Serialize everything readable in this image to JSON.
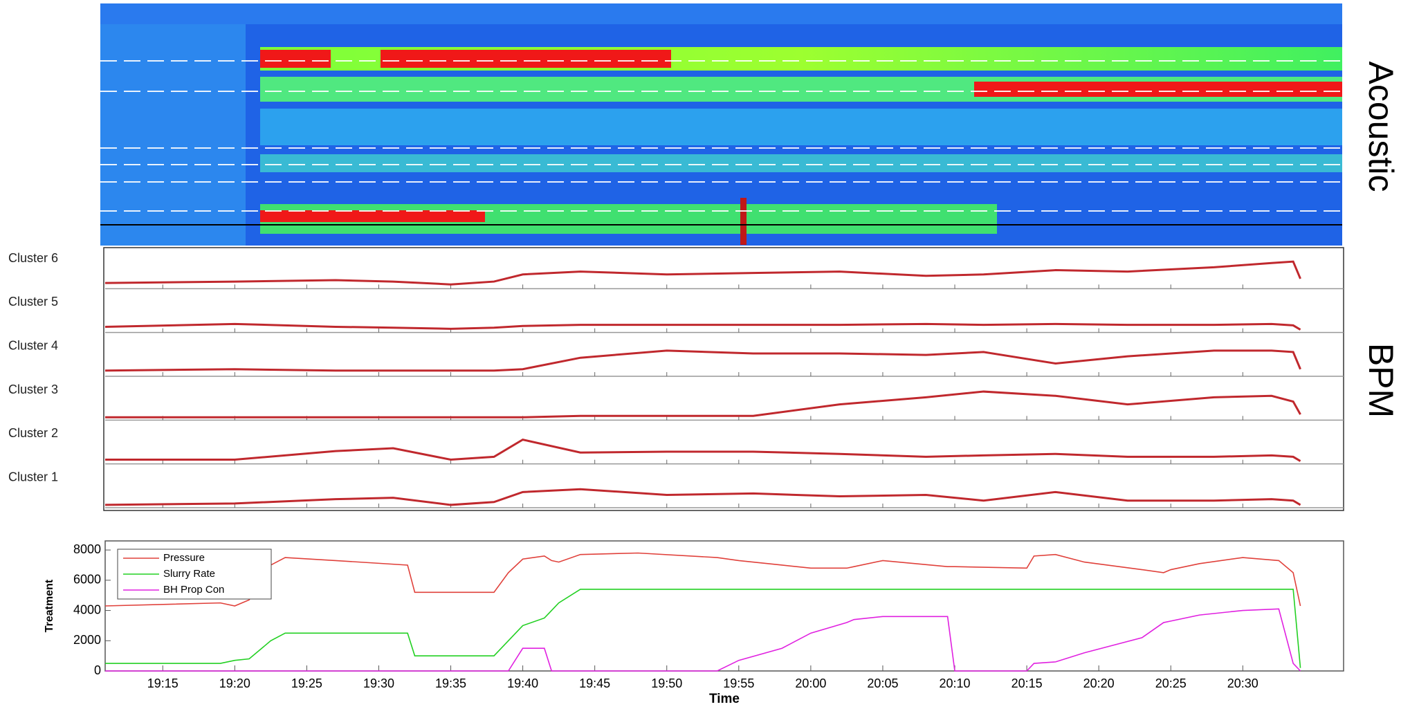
{
  "chart_data": [
    {
      "type": "heatmap",
      "label": "Acoustic"
    },
    {
      "type": "lanes",
      "label": "BPM",
      "x": [
        1151,
        1160,
        1167,
        1171,
        1175,
        1178,
        1180,
        1184,
        1190,
        1196,
        1202,
        1208,
        1212,
        1217,
        1222,
        1228,
        1232,
        1233.5,
        1234
      ],
      "xlim": [
        1151,
        1237
      ],
      "ylim": [
        0,
        1
      ],
      "series": [
        {
          "name": "Cluster 6",
          "color": "#c0282d",
          "values": [
            0.15,
            0.2,
            0.25,
            0.2,
            0.1,
            0.2,
            0.45,
            0.55,
            0.45,
            0.5,
            0.55,
            0.4,
            0.45,
            0.6,
            0.55,
            0.7,
            0.85,
            0.9,
            0.3
          ]
        },
        {
          "name": "Cluster 5",
          "color": "#c0282d",
          "values": [
            0.15,
            0.25,
            0.15,
            0.12,
            0.08,
            0.12,
            0.18,
            0.22,
            0.22,
            0.22,
            0.22,
            0.25,
            0.22,
            0.25,
            0.22,
            0.22,
            0.25,
            0.2,
            0.05
          ]
        },
        {
          "name": "Cluster 4",
          "color": "#c0282d",
          "values": [
            0.15,
            0.2,
            0.15,
            0.15,
            0.15,
            0.15,
            0.2,
            0.6,
            0.85,
            0.75,
            0.75,
            0.7,
            0.8,
            0.4,
            0.65,
            0.85,
            0.85,
            0.8,
            0.2
          ]
        },
        {
          "name": "Cluster 3",
          "color": "#c0282d",
          "values": [
            0.05,
            0.05,
            0.05,
            0.05,
            0.05,
            0.05,
            0.05,
            0.1,
            0.1,
            0.1,
            0.5,
            0.75,
            0.95,
            0.8,
            0.5,
            0.75,
            0.8,
            0.6,
            0.15
          ]
        },
        {
          "name": "Cluster 2",
          "color": "#c0282d",
          "values": [
            0.1,
            0.1,
            0.4,
            0.5,
            0.1,
            0.2,
            0.8,
            0.35,
            0.38,
            0.38,
            0.3,
            0.2,
            0.25,
            0.3,
            0.2,
            0.2,
            0.25,
            0.2,
            0.05
          ]
        },
        {
          "name": "Cluster 1",
          "color": "#c0282d",
          "values": [
            0.05,
            0.1,
            0.25,
            0.3,
            0.05,
            0.15,
            0.5,
            0.6,
            0.4,
            0.45,
            0.35,
            0.4,
            0.2,
            0.5,
            0.2,
            0.2,
            0.25,
            0.2,
            0.05
          ]
        }
      ]
    },
    {
      "type": "line",
      "ylabel": "Treatment",
      "xlabel": "Time",
      "legend": "upper left",
      "x": [
        1151,
        1159,
        1160,
        1161,
        1162.5,
        1163.5,
        1167,
        1172,
        1172.5,
        1178,
        1179,
        1180,
        1181.5,
        1182,
        1182.5,
        1184,
        1188,
        1193.5,
        1195,
        1198,
        1200,
        1202.5,
        1203,
        1205,
        1209.5,
        1210,
        1215,
        1215.5,
        1217,
        1219,
        1223,
        1224.5,
        1225,
        1227,
        1230,
        1232.5,
        1233.5,
        1234
      ],
      "xlim": [
        1151,
        1237
      ],
      "ylim": [
        0,
        8600
      ],
      "yticks": [
        0,
        2000,
        4000,
        6000,
        8000
      ],
      "xticks": [
        {
          "value": 1155,
          "label": "19:15"
        },
        {
          "value": 1160,
          "label": "19:20"
        },
        {
          "value": 1165,
          "label": "19:25"
        },
        {
          "value": 1170,
          "label": "19:30"
        },
        {
          "value": 1175,
          "label": "19:35"
        },
        {
          "value": 1180,
          "label": "19:40"
        },
        {
          "value": 1185,
          "label": "19:45"
        },
        {
          "value": 1190,
          "label": "19:50"
        },
        {
          "value": 1195,
          "label": "19:55"
        },
        {
          "value": 1200,
          "label": "20:00"
        },
        {
          "value": 1205,
          "label": "20:05"
        },
        {
          "value": 1210,
          "label": "20:10"
        },
        {
          "value": 1215,
          "label": "20:15"
        },
        {
          "value": 1220,
          "label": "20:20"
        },
        {
          "value": 1225,
          "label": "20:25"
        },
        {
          "value": 1230,
          "label": "20:30"
        }
      ],
      "series": [
        {
          "name": "Pressure",
          "color": "#e0403a",
          "values": [
            4300,
            4500,
            4300,
            4700,
            7000,
            7500,
            7300,
            7000,
            5200,
            5200,
            6500,
            7400,
            7600,
            7300,
            7200,
            7700,
            7800,
            7500,
            7300,
            7000,
            6800,
            6800,
            6900,
            7300,
            6900,
            6900,
            6800,
            7600,
            7700,
            7200,
            6700,
            6500,
            6700,
            7100,
            7500,
            7300,
            6500,
            4300
          ]
        },
        {
          "name": "Slurry Rate",
          "color": "#22d022",
          "values": [
            500,
            500,
            700,
            800,
            2000,
            2500,
            2500,
            2500,
            1000,
            1000,
            2000,
            3000,
            3500,
            4000,
            4500,
            5400,
            5400,
            5400,
            5400,
            5400,
            5400,
            5400,
            5400,
            5400,
            5400,
            5400,
            5400,
            5400,
            5400,
            5400,
            5400,
            5400,
            5400,
            5400,
            5400,
            5400,
            5400,
            200
          ]
        },
        {
          "name": "BH Prop Con",
          "color": "#e020e0",
          "values": [
            0,
            0,
            0,
            0,
            0,
            0,
            0,
            0,
            0,
            0,
            0,
            1500,
            1500,
            0,
            0,
            0,
            0,
            0,
            700,
            1500,
            2500,
            3200,
            3400,
            3600,
            3600,
            0,
            0,
            500,
            600,
            1200,
            2200,
            3200,
            3300,
            3700,
            4000,
            4100,
            500,
            0
          ]
        }
      ]
    }
  ]
}
